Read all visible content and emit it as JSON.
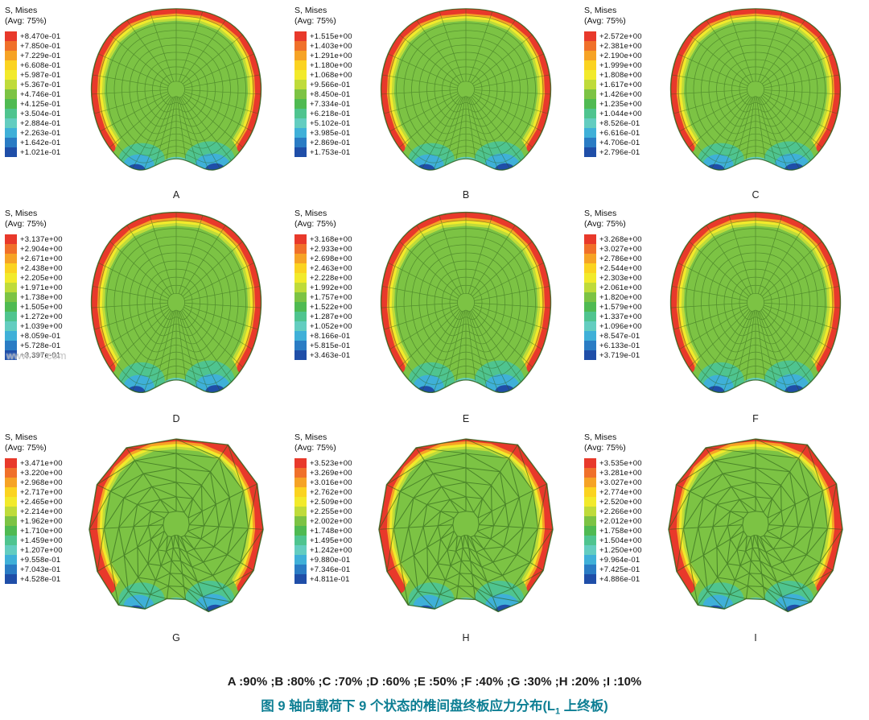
{
  "figure": {
    "legend_title": "S, Mises",
    "legend_subtitle": "(Avg: 75%)",
    "legend_colors": [
      "#e8392b",
      "#f0702a",
      "#f6a325",
      "#fbd320",
      "#f2ea2b",
      "#bfdb3a",
      "#7cc344",
      "#4fba52",
      "#4fc48f",
      "#63cdc0",
      "#3fb0d8",
      "#2a7cc4",
      "#1f4ea8"
    ],
    "body_color": "#7cc344",
    "mesh_line_color": "#2b5c18",
    "panels": [
      {
        "label": "A",
        "mesh": "quad",
        "legend_values": [
          "+8.470e-01",
          "+7.850e-01",
          "+7.229e-01",
          "+6.608e-01",
          "+5.987e-01",
          "+5.367e-01",
          "+4.746e-01",
          "+4.125e-01",
          "+3.504e-01",
          "+2.884e-01",
          "+2.263e-01",
          "+1.642e-01",
          "+1.021e-01"
        ]
      },
      {
        "label": "B",
        "mesh": "quad",
        "legend_values": [
          "+1.515e+00",
          "+1.403e+00",
          "+1.291e+00",
          "+1.180e+00",
          "+1.068e+00",
          "+9.566e-01",
          "+8.450e-01",
          "+7.334e-01",
          "+6.218e-01",
          "+5.102e-01",
          "+3.985e-01",
          "+2.869e-01",
          "+1.753e-01"
        ]
      },
      {
        "label": "C",
        "mesh": "quad",
        "legend_values": [
          "+2.572e+00",
          "+2.381e+00",
          "+2.190e+00",
          "+1.999e+00",
          "+1.808e+00",
          "+1.617e+00",
          "+1.426e+00",
          "+1.235e+00",
          "+1.044e+00",
          "+8.526e-01",
          "+6.616e-01",
          "+4.706e-01",
          "+2.796e-01"
        ]
      },
      {
        "label": "D",
        "mesh": "quad",
        "legend_values": [
          "+3.137e+00",
          "+2.904e+00",
          "+2.671e+00",
          "+2.438e+00",
          "+2.205e+00",
          "+1.971e+00",
          "+1.738e+00",
          "+1.505e+00",
          "+1.272e+00",
          "+1.039e+00",
          "+8.059e-01",
          "+5.728e-01",
          "+3.397e-01"
        ]
      },
      {
        "label": "E",
        "mesh": "quad",
        "legend_values": [
          "+3.168e+00",
          "+2.933e+00",
          "+2.698e+00",
          "+2.463e+00",
          "+2.228e+00",
          "+1.992e+00",
          "+1.757e+00",
          "+1.522e+00",
          "+1.287e+00",
          "+1.052e+00",
          "+8.166e-01",
          "+5.815e-01",
          "+3.463e-01"
        ]
      },
      {
        "label": "F",
        "mesh": "quad",
        "legend_values": [
          "+3.268e+00",
          "+3.027e+00",
          "+2.786e+00",
          "+2.544e+00",
          "+2.303e+00",
          "+2.061e+00",
          "+1.820e+00",
          "+1.579e+00",
          "+1.337e+00",
          "+1.096e+00",
          "+8.547e-01",
          "+6.133e-01",
          "+3.719e-01"
        ]
      },
      {
        "label": "G",
        "mesh": "tri",
        "legend_values": [
          "+3.471e+00",
          "+3.220e+00",
          "+2.968e+00",
          "+2.717e+00",
          "+2.465e+00",
          "+2.214e+00",
          "+1.962e+00",
          "+1.710e+00",
          "+1.459e+00",
          "+1.207e+00",
          "+9.558e-01",
          "+7.043e-01",
          "+4.528e-01"
        ]
      },
      {
        "label": "H",
        "mesh": "tri",
        "legend_values": [
          "+3.523e+00",
          "+3.269e+00",
          "+3.016e+00",
          "+2.762e+00",
          "+2.509e+00",
          "+2.255e+00",
          "+2.002e+00",
          "+1.748e+00",
          "+1.495e+00",
          "+1.242e+00",
          "+9.880e-01",
          "+7.346e-01",
          "+4.811e-01"
        ]
      },
      {
        "label": "I",
        "mesh": "tri",
        "legend_values": [
          "+3.535e+00",
          "+3.281e+00",
          "+3.027e+00",
          "+2.774e+00",
          "+2.520e+00",
          "+2.266e+00",
          "+2.012e+00",
          "+1.758e+00",
          "+1.504e+00",
          "+1.250e+00",
          "+9.964e-01",
          "+7.425e-01",
          "+4.886e-01"
        ]
      }
    ],
    "caption_line1": "A :90% ;B :80% ;C :70% ;D :60% ;E :50% ;F :40% ;G :30% ;H :20% ;I :10%",
    "caption_title_prefix": "图 9  轴向载荷下 9 个状态的椎间盘终板应力分布(L",
    "caption_title_sub": "1",
    "caption_title_suffix": " 上终板)",
    "caption_color": "#0e7f94",
    "watermark": "www.***.com"
  }
}
